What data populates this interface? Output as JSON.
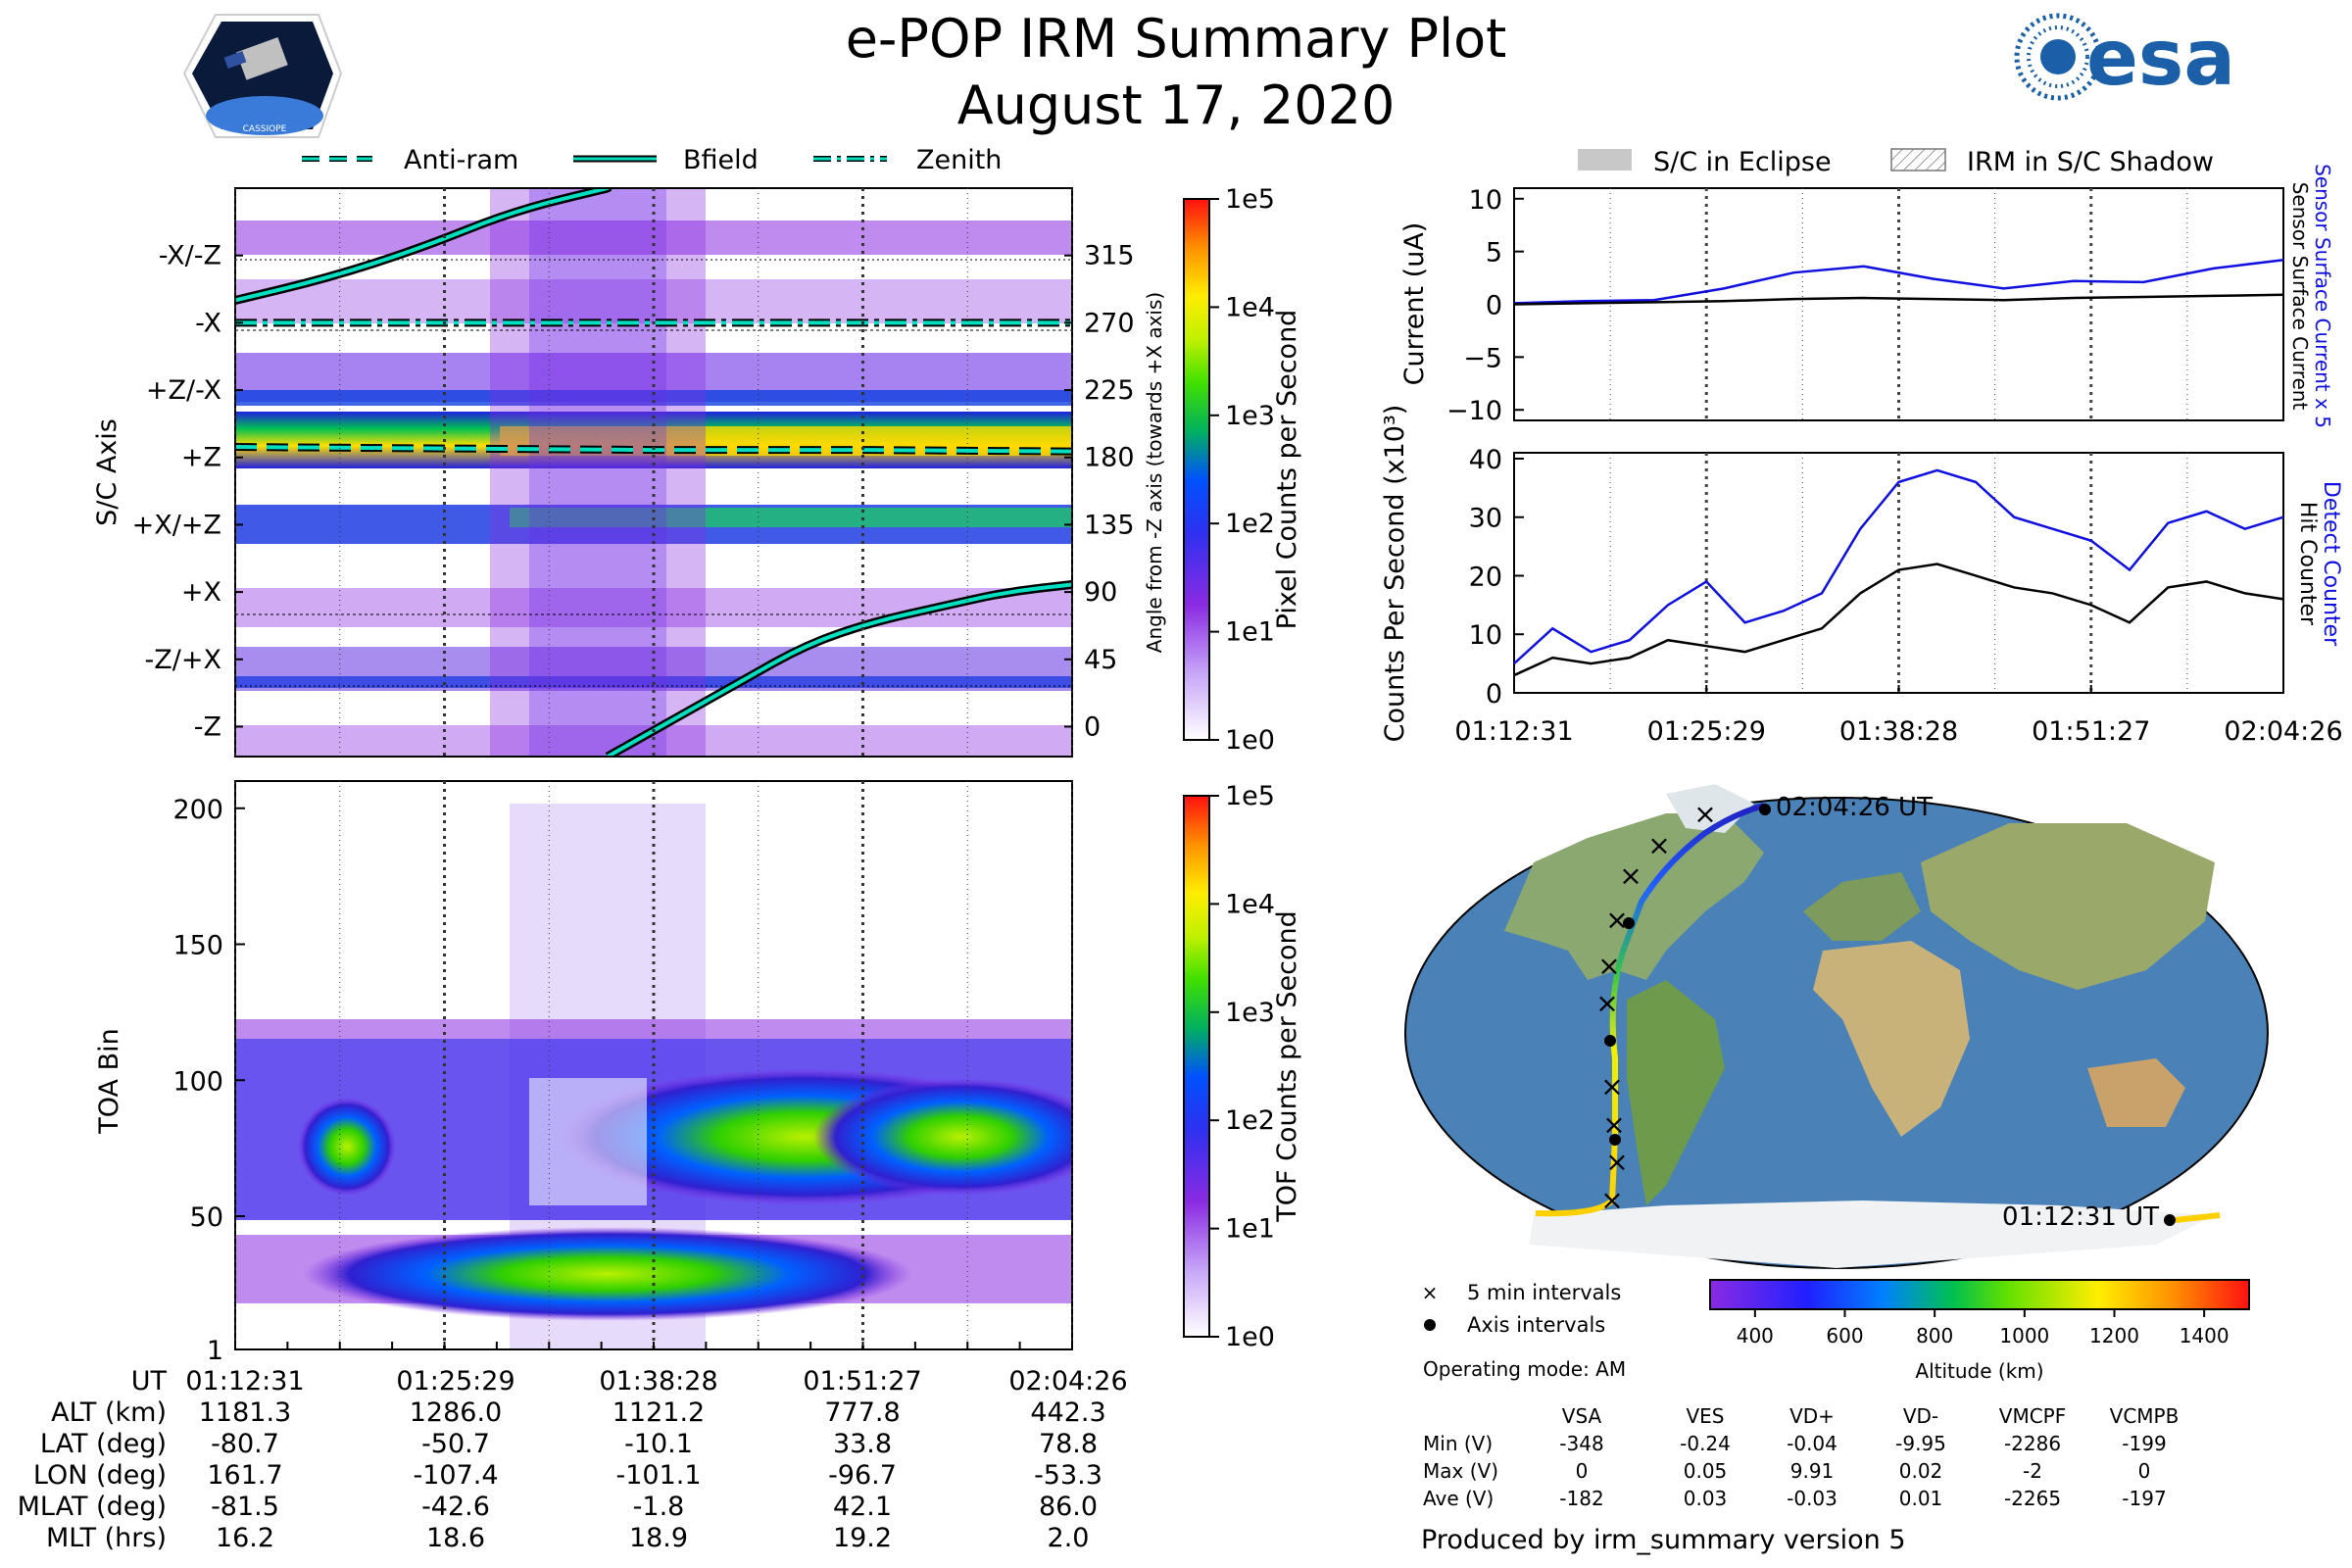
{
  "title": "e-POP IRM Summary Plot",
  "date": "August 17, 2020",
  "legend_top": {
    "antiram": "Anti-ram",
    "bfield": "Bfield",
    "zenith": "Zenith",
    "eclipse": "S/C in Eclipse",
    "shadow": "IRM in S/C Shadow"
  },
  "logos": {
    "esa": "esa",
    "cassiope": "CASSIOPE"
  },
  "colors": {
    "line": "#00e0c0",
    "blue": "#1010e0",
    "purple": "#8a2be2"
  },
  "chart_data": [
    {
      "name": "pixel-counts",
      "type": "heatmap",
      "ylabel": "S/C Axis",
      "yticks": [
        "-X/-Z",
        "-X",
        "+Z/-X",
        "+Z",
        "+X/+Z",
        "+X",
        "-Z/+X",
        "-Z"
      ],
      "ylabel_right": "Angle from -Z axis (towards +X axis)",
      "yticks_right": [
        315,
        270,
        225,
        180,
        135,
        90,
        45,
        0
      ],
      "ylim_right": [
        -20,
        360
      ],
      "colorbar_label": "Pixel Counts per Second",
      "colorbar_ticks": [
        "1e0",
        "1e1",
        "1e2",
        "1e3",
        "1e4",
        "1e5"
      ],
      "series": [
        {
          "name": "Zenith",
          "values": [
            270,
            270,
            270,
            270,
            270
          ]
        },
        {
          "name": "Anti-ram",
          "values": [
            187,
            186,
            185,
            185,
            184
          ]
        },
        {
          "name": "Bfield",
          "values": [
            285,
            340,
            20,
            70,
            95
          ]
        }
      ]
    },
    {
      "name": "toa",
      "type": "heatmap",
      "ylabel": "TOA Bin",
      "yticks": [
        1,
        50,
        100,
        150,
        200
      ],
      "ylim": [
        1,
        210
      ],
      "colorbar_label": "TOF Counts per Second",
      "colorbar_ticks": [
        "1e0",
        "1e1",
        "1e2",
        "1e3",
        "1e4",
        "1e5"
      ]
    },
    {
      "name": "current",
      "type": "line",
      "ylabel": "Current (uA)",
      "ylim": [
        -11,
        11
      ],
      "yticks": [
        10,
        5,
        0,
        -5,
        -10
      ],
      "right_labels": [
        "Sensor Surface Current x 5",
        "Sensor Surface Current"
      ],
      "series": [
        {
          "name": "Sensor Surface Current x 5",
          "values": [
            0.1,
            0.3,
            0.4,
            1.5,
            3.0,
            3.6,
            2.4,
            1.5,
            2.2,
            2.1,
            3.4,
            4.2
          ]
        },
        {
          "name": "Sensor Surface Current",
          "values": [
            0.0,
            0.1,
            0.2,
            0.3,
            0.5,
            0.6,
            0.5,
            0.4,
            0.6,
            0.7,
            0.8,
            0.9
          ]
        }
      ]
    },
    {
      "name": "counts",
      "type": "line",
      "ylabel": "Counts Per Second (x10³)",
      "ylim": [
        0,
        41
      ],
      "yticks": [
        40,
        30,
        20,
        10,
        0
      ],
      "right_labels": [
        "Detect Counter",
        "Hit Counter"
      ],
      "xticks": [
        "01:12:31",
        "01:25:29",
        "01:38:28",
        "01:51:27",
        "02:04:26"
      ],
      "series": [
        {
          "name": "Detect Counter",
          "values": [
            5,
            11,
            7,
            9,
            15,
            19,
            12,
            14,
            17,
            28,
            36,
            38,
            36,
            30,
            28,
            26,
            21,
            29,
            31,
            28,
            30
          ]
        },
        {
          "name": "Hit Counter",
          "values": [
            3,
            6,
            5,
            6,
            9,
            8,
            7,
            9,
            11,
            17,
            21,
            22,
            20,
            18,
            17,
            15,
            12,
            18,
            19,
            17,
            16
          ]
        }
      ]
    },
    {
      "name": "altitude",
      "type": "colorbar",
      "label": "Altitude (km)",
      "ticks": [
        400,
        600,
        800,
        1000,
        1200,
        1400
      ],
      "range": [
        300,
        1500
      ]
    }
  ],
  "map": {
    "start_label": "01:12:31 UT",
    "end_label": "02:04:26 UT",
    "legend_5min": "5 min intervals",
    "legend_axis": "Axis intervals",
    "operating_mode": "Operating mode: AM"
  },
  "bottom_table": {
    "row_labels": [
      "UT",
      "ALT (km)",
      "LAT (deg)",
      "LON (deg)",
      "MLAT (deg)",
      "MLT (hrs)"
    ],
    "columns": [
      [
        "01:12:31",
        "1181.3",
        "-80.7",
        "161.7",
        "-81.5",
        "16.2"
      ],
      [
        "01:25:29",
        "1286.0",
        "-50.7",
        "-107.4",
        "-42.6",
        "18.6"
      ],
      [
        "01:38:28",
        "1121.2",
        "-10.1",
        "-101.1",
        "-1.8",
        "18.9"
      ],
      [
        "01:51:27",
        "777.8",
        "33.8",
        "-96.7",
        "42.1",
        "19.2"
      ],
      [
        "02:04:26",
        "442.3",
        "78.8",
        "-53.3",
        "86.0",
        "2.0"
      ]
    ]
  },
  "voltage_table": {
    "headers": [
      "VSA",
      "VES",
      "VD+",
      "VD-",
      "VMCPF",
      "VCMPB"
    ],
    "rows": [
      {
        "label": "Min (V)",
        "values": [
          "-348",
          "-0.24",
          "-0.04",
          "-9.95",
          "-2286",
          "-199"
        ]
      },
      {
        "label": "Max (V)",
        "values": [
          "0",
          "0.05",
          "9.91",
          "0.02",
          "-2",
          "0"
        ]
      },
      {
        "label": "Ave (V)",
        "values": [
          "-182",
          "0.03",
          "-0.03",
          "0.01",
          "-2265",
          "-197"
        ]
      }
    ]
  },
  "footer": "Produced by irm_summary version 5"
}
